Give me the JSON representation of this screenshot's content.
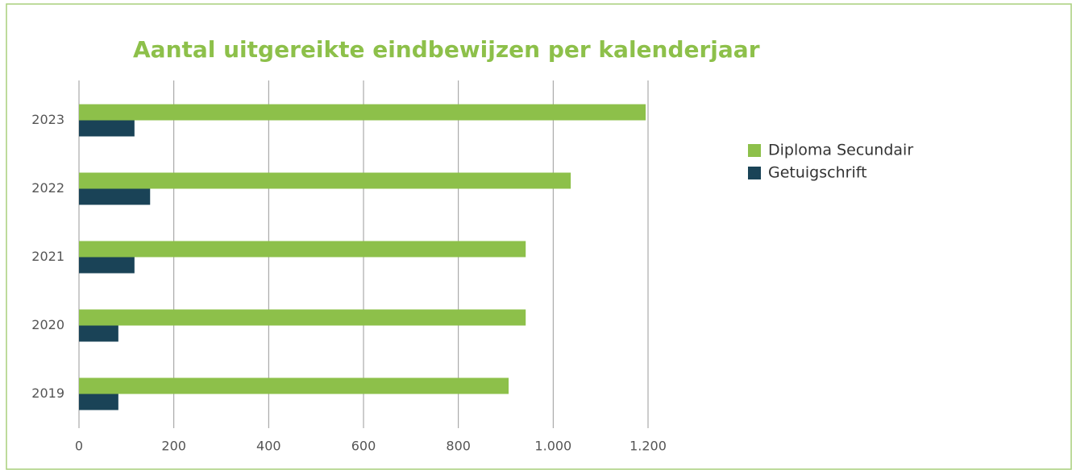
{
  "chart_data": {
    "type": "hbar",
    "title": "Aantal uitgereikte eindbewijzen per kalenderjaar",
    "categories": [
      "2019",
      "2020",
      "2021",
      "2022",
      "2023"
    ],
    "series": [
      {
        "name": "Diploma Secundair",
        "color": "#8dc04a",
        "values": [
          906,
          942,
          942,
          1037,
          1195
        ]
      },
      {
        "name": "Getuigschrift",
        "color": "#1a4357",
        "values": [
          83,
          83,
          117,
          150,
          117
        ]
      }
    ],
    "xlim": [
      0,
      1200
    ],
    "xticks": [
      0,
      200,
      400,
      600,
      800,
      {
        "value": 1000,
        "label": "1.000"
      },
      {
        "value": 1200,
        "label": "1.200"
      }
    ],
    "grid": true,
    "legend": "right"
  }
}
